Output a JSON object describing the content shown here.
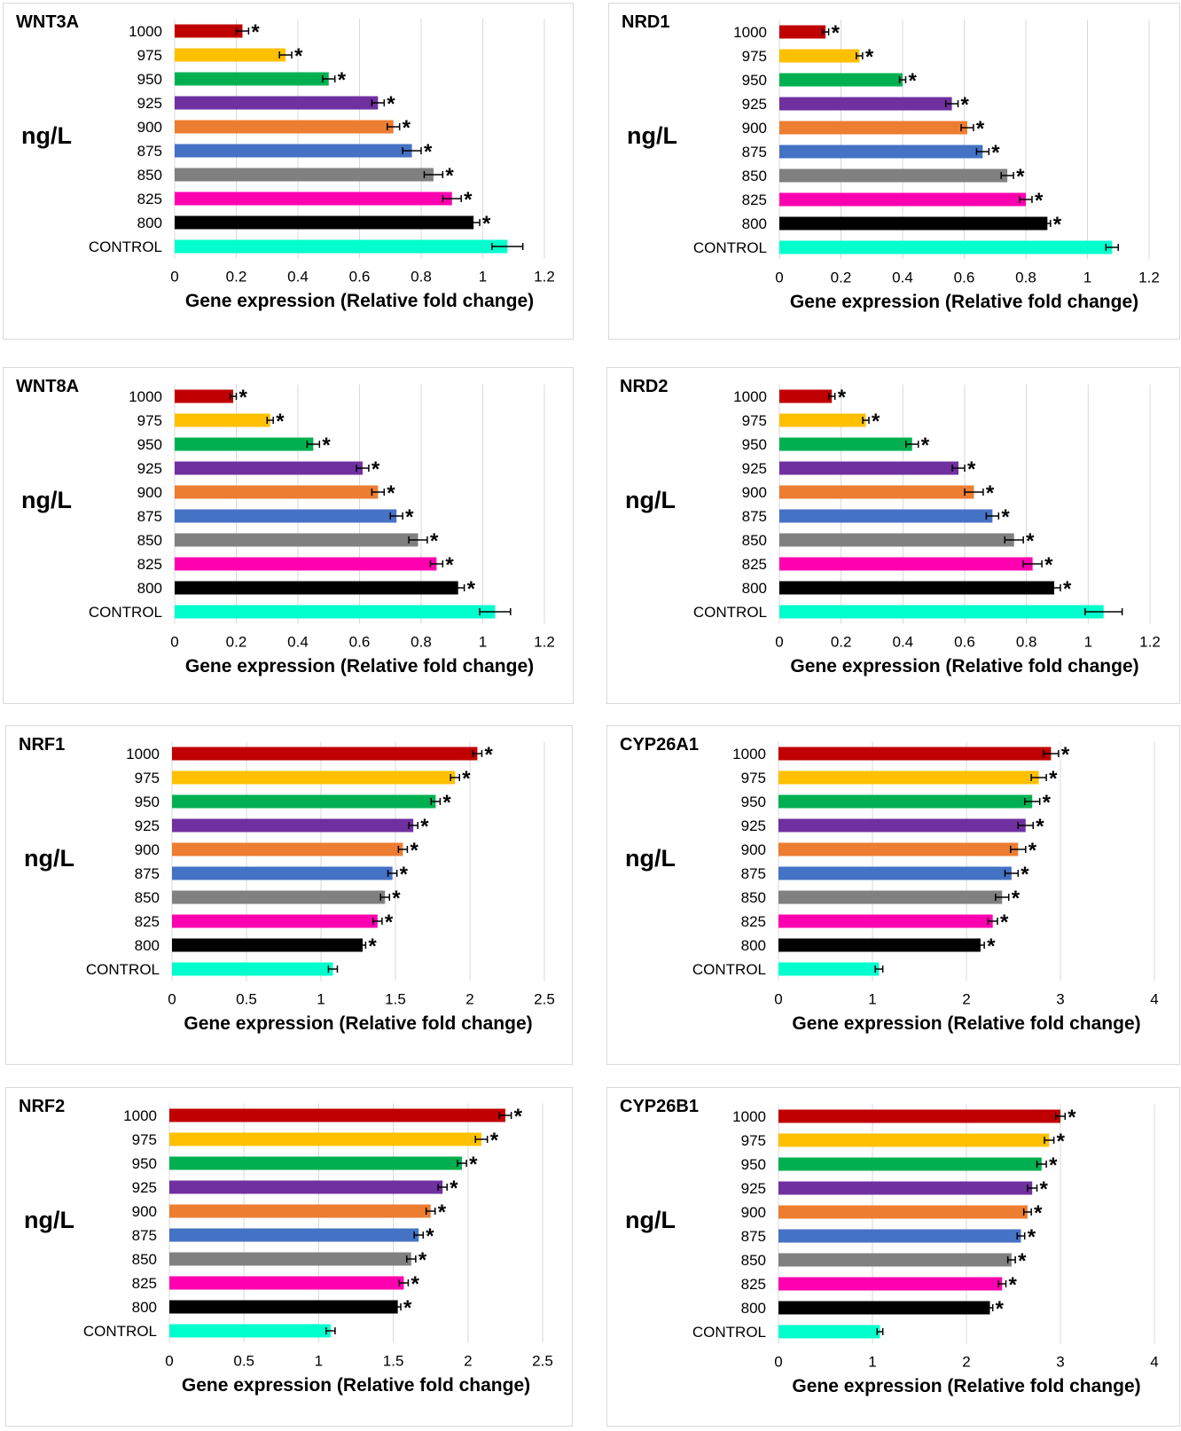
{
  "colors": [
    "#c00000",
    "#ffc000",
    "#00b050",
    "#7030a0",
    "#ed7d31",
    "#4472c4",
    "#808080",
    "#ff00b0",
    "#000000",
    "#00ffcc"
  ],
  "chart_data": [
    {
      "type": "bar",
      "orientation": "horizontal",
      "title": "WNT3A",
      "ylabel": "ng/L",
      "xlabel": "Gene expression (Relative fold change)",
      "categories": [
        "1000",
        "975",
        "950",
        "925",
        "900",
        "875",
        "850",
        "825",
        "800",
        "CONTROL"
      ],
      "values": [
        0.22,
        0.36,
        0.5,
        0.66,
        0.71,
        0.77,
        0.84,
        0.9,
        0.97,
        1.08
      ],
      "errors": [
        0.02,
        0.02,
        0.02,
        0.02,
        0.02,
        0.03,
        0.03,
        0.03,
        0.02,
        0.05
      ],
      "significant": [
        "*",
        "*",
        "*",
        "*",
        "*",
        "*",
        "*",
        "*",
        "*",
        ""
      ],
      "xlim": [
        0,
        1.2
      ],
      "xticks": [
        "0",
        "0.2",
        "0.4",
        "0.6",
        "0.8",
        "1",
        "1.2"
      ],
      "grid": true
    },
    {
      "type": "bar",
      "orientation": "horizontal",
      "title": "NRD1",
      "ylabel": "ng/L",
      "xlabel": "Gene expression (Relative fold change)",
      "categories": [
        "1000",
        "975",
        "950",
        "925",
        "900",
        "875",
        "850",
        "825",
        "800",
        "CONTROL"
      ],
      "values": [
        0.15,
        0.26,
        0.4,
        0.56,
        0.61,
        0.66,
        0.74,
        0.8,
        0.87,
        1.08
      ],
      "errors": [
        0.01,
        0.01,
        0.01,
        0.02,
        0.02,
        0.02,
        0.02,
        0.02,
        0.01,
        0.02
      ],
      "significant": [
        "*",
        "*",
        "*",
        "*",
        "*",
        "*",
        "*",
        "*",
        "*",
        ""
      ],
      "xlim": [
        0,
        1.2
      ],
      "xticks": [
        "0",
        "0.2",
        "0.4",
        "0.6",
        "0.8",
        "1",
        "1.2"
      ],
      "grid": true
    },
    {
      "type": "bar",
      "orientation": "horizontal",
      "title": "WNT8A",
      "ylabel": "ng/L",
      "xlabel": "Gene expression (Relative fold change)",
      "categories": [
        "1000",
        "975",
        "950",
        "925",
        "900",
        "875",
        "850",
        "825",
        "800",
        "CONTROL"
      ],
      "values": [
        0.19,
        0.31,
        0.45,
        0.61,
        0.66,
        0.72,
        0.79,
        0.85,
        0.92,
        1.04
      ],
      "errors": [
        0.01,
        0.01,
        0.02,
        0.02,
        0.02,
        0.02,
        0.03,
        0.02,
        0.02,
        0.05
      ],
      "significant": [
        "*",
        "*",
        "*",
        "*",
        "*",
        "*",
        "*",
        "*",
        "*",
        ""
      ],
      "xlim": [
        0,
        1.2
      ],
      "xticks": [
        "0",
        "0.2",
        "0.4",
        "0.6",
        "0.8",
        "1",
        "1.2"
      ],
      "grid": true
    },
    {
      "type": "bar",
      "orientation": "horizontal",
      "title": "NRD2",
      "ylabel": "ng/L",
      "xlabel": "Gene expression (Relative fold change)",
      "categories": [
        "1000",
        "975",
        "950",
        "925",
        "900",
        "875",
        "850",
        "825",
        "800",
        "CONTROL"
      ],
      "values": [
        0.17,
        0.28,
        0.43,
        0.58,
        0.63,
        0.69,
        0.76,
        0.82,
        0.89,
        1.05
      ],
      "errors": [
        0.01,
        0.01,
        0.02,
        0.02,
        0.03,
        0.02,
        0.03,
        0.03,
        0.02,
        0.06
      ],
      "significant": [
        "*",
        "*",
        "*",
        "*",
        "*",
        "*",
        "*",
        "*",
        "*",
        ""
      ],
      "xlim": [
        0,
        1.2
      ],
      "xticks": [
        "0",
        "0.2",
        "0.4",
        "0.6",
        "0.8",
        "1",
        "1.2"
      ],
      "grid": true
    },
    {
      "type": "bar",
      "orientation": "horizontal",
      "title": "NRF1",
      "ylabel": "ng/L",
      "xlabel": "Gene expression (Relative fold change)",
      "categories": [
        "1000",
        "975",
        "950",
        "925",
        "900",
        "875",
        "850",
        "825",
        "800",
        "CONTROL"
      ],
      "values": [
        2.05,
        1.9,
        1.77,
        1.62,
        1.55,
        1.48,
        1.43,
        1.38,
        1.28,
        1.08
      ],
      "errors": [
        0.03,
        0.03,
        0.03,
        0.03,
        0.03,
        0.03,
        0.03,
        0.03,
        0.02,
        0.03
      ],
      "significant": [
        "*",
        "*",
        "*",
        "*",
        "*",
        "*",
        "*",
        "*",
        "*",
        ""
      ],
      "xlim": [
        0,
        2.5
      ],
      "xticks": [
        "0",
        "0.5",
        "1",
        "1.5",
        "2",
        "2.5"
      ],
      "grid": true
    },
    {
      "type": "bar",
      "orientation": "horizontal",
      "title": "CYP26A1",
      "ylabel": "ng/L",
      "xlabel": "Gene expression (Relative fold change)",
      "categories": [
        "1000",
        "975",
        "950",
        "925",
        "900",
        "875",
        "850",
        "825",
        "800",
        "CONTROL"
      ],
      "values": [
        2.9,
        2.77,
        2.7,
        2.63,
        2.55,
        2.48,
        2.38,
        2.28,
        2.15,
        1.07
      ],
      "errors": [
        0.08,
        0.08,
        0.08,
        0.08,
        0.08,
        0.07,
        0.07,
        0.05,
        0.04,
        0.04
      ],
      "significant": [
        "*",
        "*",
        "*",
        "*",
        "*",
        "*",
        "*",
        "*",
        "*",
        ""
      ],
      "xlim": [
        0,
        4
      ],
      "xticks": [
        "0",
        "1",
        "2",
        "3",
        "4"
      ],
      "grid": true
    },
    {
      "type": "bar",
      "orientation": "horizontal",
      "title": "NRF2",
      "ylabel": "ng/L",
      "xlabel": "Gene expression (Relative fold change)",
      "categories": [
        "1000",
        "975",
        "950",
        "925",
        "900",
        "875",
        "850",
        "825",
        "800",
        "CONTROL"
      ],
      "values": [
        2.25,
        2.09,
        1.96,
        1.83,
        1.75,
        1.67,
        1.62,
        1.57,
        1.53,
        1.08
      ],
      "errors": [
        0.04,
        0.04,
        0.03,
        0.03,
        0.03,
        0.03,
        0.03,
        0.03,
        0.02,
        0.03
      ],
      "significant": [
        "*",
        "*",
        "*",
        "*",
        "*",
        "*",
        "*",
        "*",
        "*",
        ""
      ],
      "xlim": [
        0,
        2.5
      ],
      "xticks": [
        "0",
        "0.5",
        "1",
        "1.5",
        "2",
        "2.5"
      ],
      "grid": true
    },
    {
      "type": "bar",
      "orientation": "horizontal",
      "title": "CYP26B1",
      "ylabel": "ng/L",
      "xlabel": "Gene expression (Relative fold change)",
      "categories": [
        "1000",
        "975",
        "950",
        "925",
        "900",
        "875",
        "850",
        "825",
        "800",
        "CONTROL"
      ],
      "values": [
        3.0,
        2.88,
        2.8,
        2.7,
        2.65,
        2.58,
        2.48,
        2.38,
        2.25,
        1.08
      ],
      "errors": [
        0.05,
        0.05,
        0.05,
        0.05,
        0.04,
        0.04,
        0.04,
        0.04,
        0.03,
        0.03
      ],
      "significant": [
        "*",
        "*",
        "*",
        "*",
        "*",
        "*",
        "*",
        "*",
        "*",
        ""
      ],
      "xlim": [
        0,
        4
      ],
      "xticks": [
        "0",
        "1",
        "2",
        "3",
        "4"
      ],
      "grid": true
    }
  ]
}
